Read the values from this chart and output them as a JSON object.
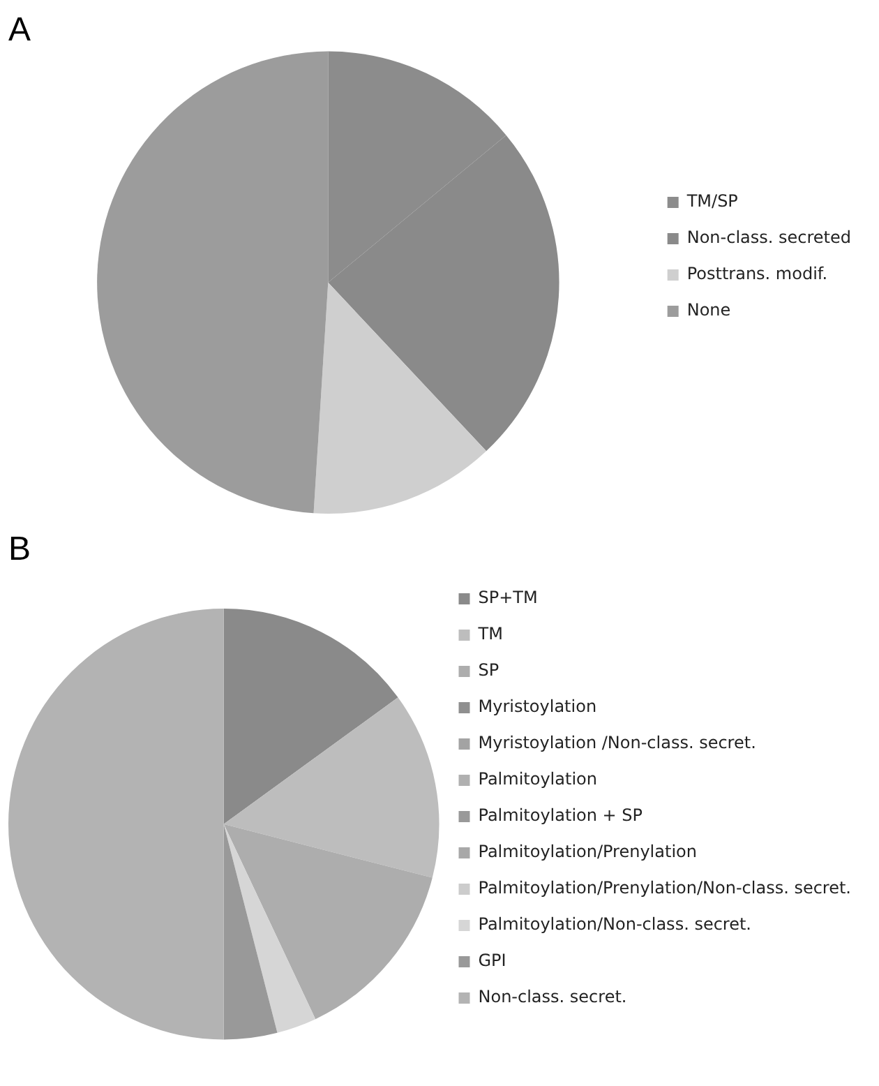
{
  "chart_data": [
    {
      "type": "pie",
      "title": "A",
      "categories": [
        "TM/SP",
        "Non-class. secreted",
        "Posttrans. modif.",
        "None"
      ],
      "values": [
        14,
        24,
        13,
        49
      ],
      "colors": [
        "#8c8c8c",
        "#8a8a8a",
        "#cfcfcf",
        "#9c9c9c"
      ],
      "legend": "right"
    },
    {
      "type": "pie",
      "title": "B",
      "categories": [
        "SP+TM",
        "TM",
        "SP",
        "Myristoylation",
        "Myristoylation /Non-class. secret.",
        "Palmitoylation",
        "Palmitoylation + SP",
        "Palmitoylation/Prenylation",
        "Palmitoylation/Prenylation/Non-class. secret.",
        "Palmitoylation/Non-class. secret.",
        "GPI",
        "Non-class. secret."
      ],
      "values": [
        15,
        14,
        14,
        0,
        0,
        0,
        0,
        0,
        0,
        3,
        4,
        50
      ],
      "colors": [
        "#8a8a8a",
        "#bdbdbd",
        "#adadad",
        "#8f8f8f",
        "#a3a3a3",
        "#b0b0b0",
        "#999999",
        "#a8a8a8",
        "#cccccc",
        "#d6d6d6",
        "#999999",
        "#b3b3b3"
      ],
      "legend": "right"
    }
  ]
}
